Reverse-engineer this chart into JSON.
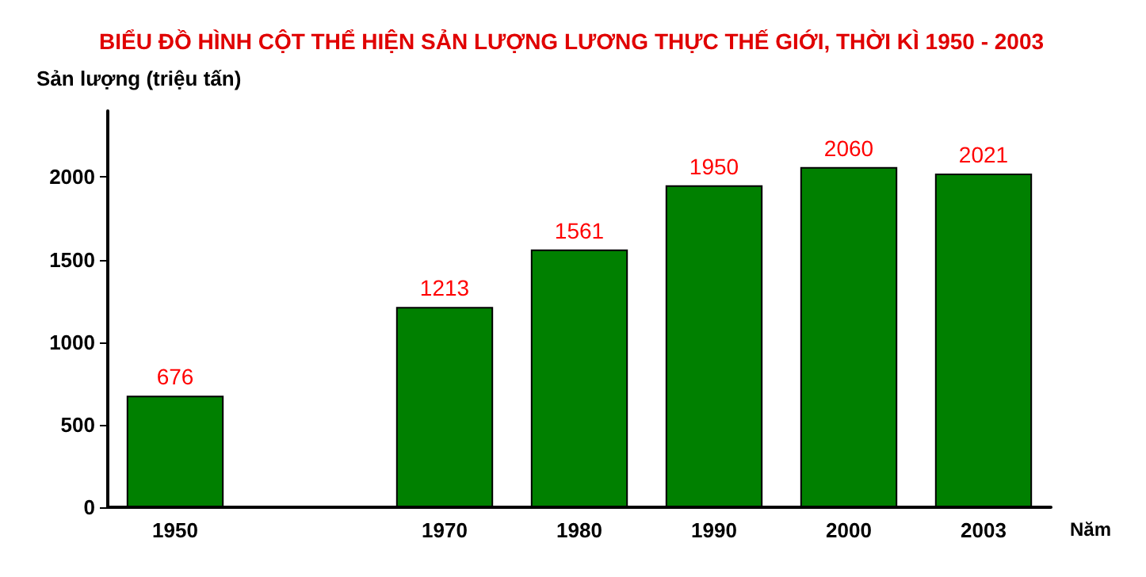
{
  "chart_data": {
    "type": "bar",
    "title": "BIỂU ĐỒ HÌNH CỘT THỂ HIỆN SẢN LƯỢNG LƯƠNG THỰC THẾ GIỚI, THỜI KÌ 1950 - 2003",
    "ylabel": "Sản lượng (triệu tấn)",
    "xlabel": "Năm",
    "categories": [
      "1950",
      null,
      "1970",
      "1980",
      "1990",
      "2000",
      "2003"
    ],
    "values": [
      676,
      null,
      1213,
      1561,
      1950,
      2060,
      2021
    ],
    "color": "#008000",
    "data_labels": true,
    "ylim": [
      0,
      2400
    ],
    "yticks": [
      0,
      500,
      1000,
      1500,
      2000
    ],
    "grid": false
  }
}
